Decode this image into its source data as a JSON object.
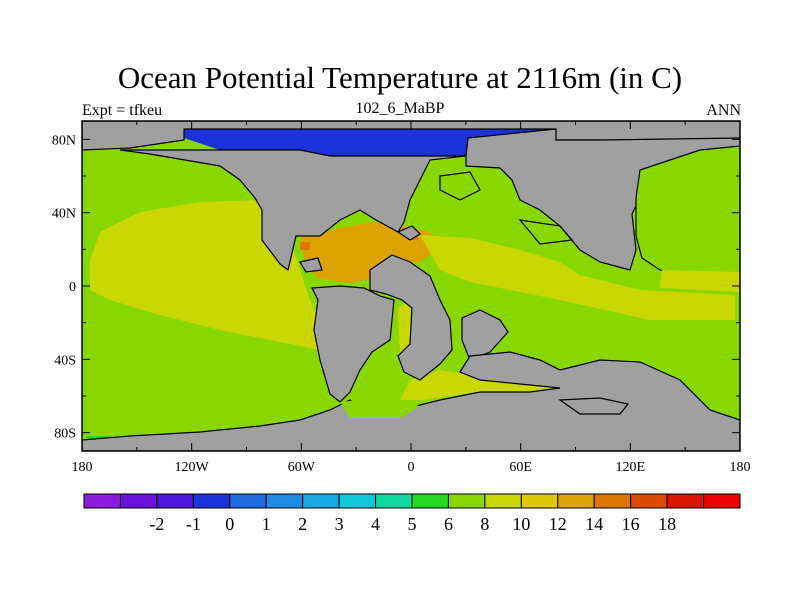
{
  "title": "Ocean Potential Temperature at 2116m (in C)",
  "left_label": "Expt = tfkeu",
  "center_label": "102_6_MaBP",
  "right_label": "ANN",
  "axes": {
    "x_ticks": [
      {
        "value": -180,
        "label": "180"
      },
      {
        "value": -120,
        "label": "120W"
      },
      {
        "value": -60,
        "label": "60W"
      },
      {
        "value": 0,
        "label": "0"
      },
      {
        "value": 60,
        "label": "60E"
      },
      {
        "value": 120,
        "label": "120E"
      },
      {
        "value": 180,
        "label": "180"
      }
    ],
    "y_ticks": [
      {
        "value": 80,
        "label": "80N"
      },
      {
        "value": 40,
        "label": "40N"
      },
      {
        "value": 0,
        "label": "0"
      },
      {
        "value": -40,
        "label": "40S"
      },
      {
        "value": -80,
        "label": "80S"
      }
    ],
    "lon_range": [
      -180,
      180
    ],
    "lat_range": [
      -90,
      90
    ]
  },
  "colorbar": {
    "colors": [
      "#8a1ce0",
      "#6a12dc",
      "#4a1ad8",
      "#1a32d8",
      "#1e6ae0",
      "#1e8ae0",
      "#16a8e0",
      "#10c8d8",
      "#10d8a0",
      "#22d822",
      "#88d800",
      "#c8d800",
      "#dcc800",
      "#dca200",
      "#dc7800",
      "#dc4a00",
      "#dc1400",
      "#ec0000"
    ],
    "labels": [
      "-2",
      "-1",
      "0",
      "1",
      "2",
      "3",
      "4",
      "5",
      "6",
      "8",
      "10",
      "12",
      "14",
      "16",
      "18"
    ]
  }
}
